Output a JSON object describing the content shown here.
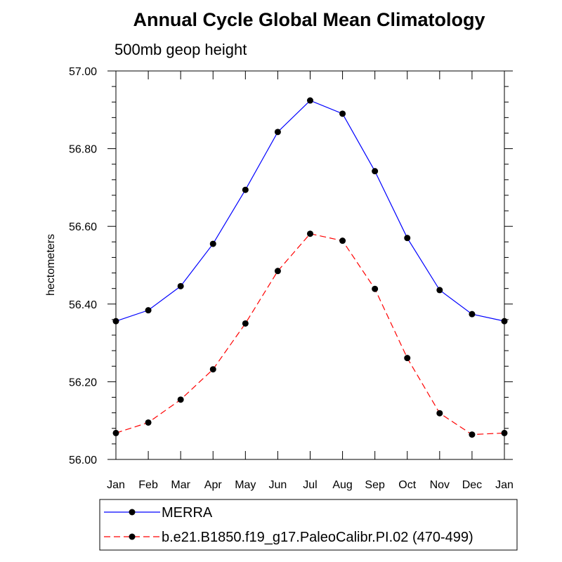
{
  "chart_data": {
    "type": "line",
    "title": "Annual Cycle Global Mean Climatology",
    "subtitle": "500mb geop height",
    "xlabel": "",
    "ylabel": "hectometers",
    "categories": [
      "Jan",
      "Feb",
      "Mar",
      "Apr",
      "May",
      "Jun",
      "Jul",
      "Aug",
      "Sep",
      "Oct",
      "Nov",
      "Dec",
      "Jan"
    ],
    "ylim": [
      56.0,
      57.0
    ],
    "yticks": [
      56.0,
      56.2,
      56.4,
      56.6,
      56.8,
      57.0
    ],
    "ytick_labels": [
      "56.00",
      "56.20",
      "56.40",
      "56.60",
      "56.80",
      "57.00"
    ],
    "grid": false,
    "legend_placement": "bottom",
    "series": [
      {
        "name": "MERRA",
        "color": "#0000ff",
        "dash": "solid",
        "marker": "circle",
        "values": [
          56.356,
          56.384,
          56.446,
          56.555,
          56.694,
          56.843,
          56.924,
          56.89,
          56.742,
          56.57,
          56.436,
          56.374,
          56.356
        ]
      },
      {
        "name": "b.e21.B1850.f19_g17.PaleoCalibr.PI.02 (470-499)",
        "color": "#ff0000",
        "dash": "dashed",
        "marker": "circle",
        "values": [
          56.068,
          56.095,
          56.154,
          56.232,
          56.35,
          56.485,
          56.581,
          56.563,
          56.439,
          56.261,
          56.119,
          56.064,
          56.068
        ]
      }
    ]
  }
}
